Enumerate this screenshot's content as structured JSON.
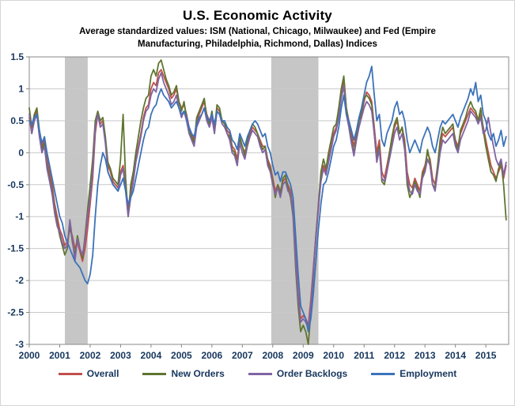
{
  "title": "U.S. Economic Activity",
  "subtitle": "Average standardized values: ISM (National, Chicago, Milwaukee) and Fed (Empire Manufacturing, Philadelphia, Richmond, Dallas) Indices",
  "chart_data": {
    "type": "line",
    "title": "U.S. Economic Activity",
    "subtitle": "Average standardized values: ISM (National, Chicago, Milwaukee) and Fed (Empire Manufacturing, Philadelphia, Richmond, Dallas) Indices",
    "xlim": [
      2000,
      2015.75
    ],
    "ylim": [
      -3,
      1.5
    ],
    "x_start": 2000.0,
    "x_step": 0.0833333,
    "x_tick_labels": [
      "2000",
      "2001",
      "2002",
      "2003",
      "2004",
      "2005",
      "2006",
      "2007",
      "2008",
      "2009",
      "2010",
      "2011",
      "2012",
      "2013",
      "2014",
      "2015"
    ],
    "x_ticks": [
      2000,
      2001,
      2002,
      2003,
      2004,
      2005,
      2006,
      2007,
      2008,
      2009,
      2010,
      2011,
      2012,
      2013,
      2014,
      2015
    ],
    "y_ticks": [
      1.5,
      1,
      0.5,
      0,
      -0.5,
      -1,
      -1.5,
      -2,
      -2.5,
      -3
    ],
    "y_tick_labels": [
      "1.5",
      "1",
      "0.5",
      "0",
      "-0.5",
      "-1",
      "-1.5",
      "-2",
      "-2.5",
      "-3"
    ],
    "grid": true,
    "legend_position": "bottom",
    "recession_bands": [
      [
        2001.17,
        2001.92
      ],
      [
        2007.95,
        2009.5
      ]
    ],
    "band_color": "#C6C6C6",
    "grid_color": "#C9C9C9",
    "axis_color": "#898989",
    "label_color": "#17375E",
    "series": [
      {
        "name": "Overall",
        "color": "#C0504D",
        "values": [
          0.55,
          0.3,
          0.55,
          0.65,
          0.3,
          0.1,
          0.2,
          -0.1,
          -0.3,
          -0.5,
          -0.8,
          -1.0,
          -1.2,
          -1.3,
          -1.45,
          -1.4,
          -1.2,
          -1.3,
          -1.5,
          -1.4,
          -1.55,
          -1.7,
          -1.5,
          -1.2,
          -0.8,
          -0.4,
          0.3,
          0.6,
          0.45,
          0.5,
          0.2,
          -0.2,
          -0.3,
          -0.45,
          -0.5,
          -0.55,
          -0.3,
          -0.2,
          -0.5,
          -0.9,
          -0.6,
          -0.4,
          -0.1,
          0.1,
          0.3,
          0.55,
          0.7,
          0.75,
          1.0,
          1.1,
          1.05,
          1.25,
          1.3,
          1.2,
          1.1,
          1.0,
          0.85,
          0.9,
          1.0,
          0.8,
          0.7,
          0.75,
          0.6,
          0.4,
          0.3,
          0.2,
          0.5,
          0.6,
          0.7,
          0.8,
          0.6,
          0.5,
          0.6,
          0.4,
          0.7,
          0.65,
          0.5,
          0.45,
          0.35,
          0.3,
          0.1,
          0.05,
          -0.1,
          0.2,
          0.1,
          0.0,
          0.15,
          0.3,
          0.4,
          0.35,
          0.3,
          0.2,
          0.1,
          0.1,
          -0.1,
          -0.2,
          -0.4,
          -0.6,
          -0.5,
          -0.6,
          -0.45,
          -0.4,
          -0.5,
          -0.6,
          -0.9,
          -1.6,
          -2.2,
          -2.6,
          -2.55,
          -2.6,
          -2.7,
          -2.3,
          -1.8,
          -1.3,
          -0.9,
          -0.4,
          -0.2,
          -0.3,
          -0.1,
          0.1,
          0.3,
          0.4,
          0.6,
          0.9,
          1.15,
          0.7,
          0.5,
          0.3,
          0.1,
          0.3,
          0.5,
          0.6,
          0.8,
          0.95,
          0.9,
          0.8,
          0.4,
          0.0,
          0.2,
          -0.3,
          -0.4,
          -0.2,
          0.0,
          0.2,
          0.4,
          0.5,
          0.3,
          0.4,
          0.2,
          -0.3,
          -0.5,
          -0.55,
          -0.4,
          -0.5,
          -0.6,
          -0.3,
          -0.2,
          0.0,
          -0.1,
          -0.4,
          -0.5,
          -0.2,
          0.1,
          0.3,
          0.25,
          0.3,
          0.35,
          0.4,
          0.2,
          0.1,
          0.3,
          0.4,
          0.5,
          0.6,
          0.7,
          0.65,
          0.6,
          0.5,
          0.6,
          0.4,
          0.2,
          0.0,
          -0.2,
          -0.3,
          -0.4,
          -0.3,
          -0.2,
          -0.4,
          -0.2
        ]
      },
      {
        "name": "New Orders",
        "color": "#5F7530",
        "values": [
          0.7,
          0.4,
          0.6,
          0.7,
          0.35,
          0.05,
          0.15,
          -0.2,
          -0.4,
          -0.6,
          -0.9,
          -1.1,
          -1.3,
          -1.45,
          -1.6,
          -1.5,
          -1.1,
          -1.4,
          -1.6,
          -1.3,
          -1.5,
          -1.65,
          -1.3,
          -0.9,
          -0.5,
          -0.1,
          0.5,
          0.65,
          0.5,
          0.55,
          0.25,
          -0.15,
          -0.25,
          -0.4,
          -0.45,
          -0.5,
          -0.1,
          0.6,
          -0.4,
          -1.0,
          -0.5,
          -0.3,
          0.0,
          0.25,
          0.5,
          0.7,
          0.85,
          0.9,
          1.2,
          1.3,
          1.2,
          1.4,
          1.45,
          1.3,
          1.15,
          1.05,
          0.9,
          0.95,
          1.05,
          0.8,
          0.65,
          0.8,
          0.55,
          0.35,
          0.25,
          0.15,
          0.55,
          0.65,
          0.75,
          0.85,
          0.55,
          0.45,
          0.65,
          0.35,
          0.75,
          0.7,
          0.5,
          0.45,
          0.3,
          0.25,
          0.05,
          0.0,
          -0.2,
          0.25,
          0.1,
          -0.05,
          0.2,
          0.35,
          0.45,
          0.4,
          0.3,
          0.15,
          0.05,
          0.1,
          -0.15,
          -0.25,
          -0.45,
          -0.7,
          -0.5,
          -0.65,
          -0.4,
          -0.35,
          -0.55,
          -0.7,
          -1.0,
          -1.8,
          -2.4,
          -2.8,
          -2.7,
          -2.8,
          -3.0,
          -2.5,
          -1.9,
          -1.3,
          -0.8,
          -0.3,
          -0.1,
          -0.25,
          0.0,
          0.2,
          0.4,
          0.45,
          0.7,
          1.0,
          1.2,
          0.7,
          0.45,
          0.2,
          0.0,
          0.25,
          0.5,
          0.65,
          0.85,
          0.9,
          0.85,
          0.75,
          0.3,
          -0.1,
          0.1,
          -0.45,
          -0.5,
          -0.3,
          0.0,
          0.25,
          0.45,
          0.55,
          0.3,
          0.4,
          0.1,
          -0.5,
          -0.7,
          -0.6,
          -0.45,
          -0.55,
          -0.7,
          -0.35,
          -0.25,
          0.05,
          -0.15,
          -0.5,
          -0.55,
          -0.2,
          0.2,
          0.4,
          0.3,
          0.35,
          0.4,
          0.45,
          0.15,
          0.05,
          0.35,
          0.45,
          0.55,
          0.7,
          0.8,
          0.7,
          0.65,
          0.5,
          0.7,
          0.35,
          0.1,
          -0.1,
          -0.3,
          -0.35,
          -0.45,
          -0.25,
          -0.15,
          -0.5,
          -1.05
        ]
      },
      {
        "name": "Order Backlogs",
        "color": "#8064A2",
        "values": [
          0.6,
          0.3,
          0.5,
          0.6,
          0.25,
          0.0,
          0.1,
          -0.25,
          -0.45,
          -0.65,
          -0.95,
          -1.15,
          -1.25,
          -1.4,
          -1.5,
          -1.45,
          -1.05,
          -1.35,
          -1.7,
          -1.35,
          -1.5,
          -1.6,
          -1.35,
          -1.0,
          -0.7,
          -0.3,
          0.4,
          0.6,
          0.4,
          0.45,
          0.15,
          -0.3,
          -0.4,
          -0.5,
          -0.55,
          -0.6,
          -0.35,
          -0.25,
          -0.6,
          -1.0,
          -0.7,
          -0.45,
          -0.15,
          0.05,
          0.25,
          0.5,
          0.65,
          0.7,
          0.9,
          1.0,
          0.95,
          1.15,
          1.25,
          1.1,
          1.0,
          0.9,
          0.75,
          0.8,
          0.9,
          0.7,
          0.55,
          0.65,
          0.5,
          0.3,
          0.2,
          0.1,
          0.4,
          0.5,
          0.6,
          0.7,
          0.5,
          0.4,
          0.55,
          0.3,
          0.65,
          0.6,
          0.45,
          0.4,
          0.3,
          0.2,
          0.0,
          -0.05,
          -0.2,
          0.15,
          0.0,
          -0.1,
          0.1,
          0.25,
          0.35,
          0.3,
          0.25,
          0.1,
          0.0,
          0.05,
          -0.2,
          -0.3,
          -0.5,
          -0.65,
          -0.55,
          -0.7,
          -0.5,
          -0.45,
          -0.6,
          -0.65,
          -0.95,
          -1.7,
          -2.3,
          -2.65,
          -2.6,
          -2.65,
          -2.75,
          -2.4,
          -1.85,
          -1.35,
          -0.85,
          -0.45,
          -0.25,
          -0.35,
          -0.15,
          0.05,
          0.25,
          0.35,
          0.55,
          0.85,
          1.05,
          0.6,
          0.4,
          0.15,
          -0.05,
          0.2,
          0.4,
          0.55,
          0.7,
          0.8,
          0.75,
          0.65,
          0.3,
          -0.15,
          0.05,
          -0.4,
          -0.45,
          -0.3,
          -0.1,
          0.1,
          0.3,
          0.4,
          0.2,
          0.3,
          0.05,
          -0.4,
          -0.6,
          -0.65,
          -0.5,
          -0.6,
          -0.65,
          -0.4,
          -0.3,
          -0.1,
          -0.2,
          -0.5,
          -0.6,
          -0.3,
          0.0,
          0.2,
          0.15,
          0.2,
          0.25,
          0.3,
          0.1,
          0.0,
          0.2,
          0.3,
          0.4,
          0.5,
          0.65,
          0.6,
          0.55,
          0.45,
          0.55,
          0.3,
          0.35,
          0.55,
          0.3,
          0.1,
          -0.1,
          -0.2,
          -0.1,
          -0.35,
          -0.15
        ]
      },
      {
        "name": "Employment",
        "color": "#3B73B9",
        "values": [
          0.5,
          0.45,
          0.55,
          0.6,
          0.35,
          0.15,
          0.25,
          0.0,
          -0.2,
          -0.4,
          -0.6,
          -0.8,
          -1.0,
          -1.1,
          -1.3,
          -1.4,
          -1.5,
          -1.6,
          -1.7,
          -1.75,
          -1.8,
          -1.9,
          -2.0,
          -2.05,
          -1.9,
          -1.6,
          -1.0,
          -0.5,
          -0.2,
          0.0,
          -0.1,
          -0.3,
          -0.4,
          -0.5,
          -0.55,
          -0.6,
          -0.5,
          -0.4,
          -0.6,
          -0.8,
          -0.7,
          -0.6,
          -0.4,
          -0.2,
          0.0,
          0.2,
          0.35,
          0.4,
          0.6,
          0.7,
          0.75,
          0.9,
          1.0,
          0.9,
          0.85,
          0.8,
          0.7,
          0.75,
          0.8,
          0.7,
          0.6,
          0.65,
          0.55,
          0.4,
          0.3,
          0.25,
          0.45,
          0.55,
          0.6,
          0.7,
          0.55,
          0.5,
          0.6,
          0.45,
          0.65,
          0.6,
          0.5,
          0.5,
          0.4,
          0.35,
          0.2,
          0.15,
          0.05,
          0.3,
          0.2,
          0.1,
          0.25,
          0.35,
          0.45,
          0.5,
          0.45,
          0.35,
          0.25,
          0.3,
          0.1,
          0.0,
          -0.2,
          -0.35,
          -0.3,
          -0.45,
          -0.3,
          -0.3,
          -0.4,
          -0.5,
          -0.7,
          -1.3,
          -1.9,
          -2.4,
          -2.5,
          -2.6,
          -2.8,
          -2.6,
          -2.2,
          -1.7,
          -1.2,
          -0.8,
          -0.5,
          -0.45,
          -0.3,
          -0.1,
          0.1,
          0.2,
          0.4,
          0.7,
          0.9,
          0.6,
          0.5,
          0.35,
          0.2,
          0.35,
          0.55,
          0.7,
          0.9,
          1.1,
          1.2,
          1.35,
          0.9,
          0.5,
          0.6,
          0.2,
          0.1,
          0.3,
          0.4,
          0.5,
          0.7,
          0.8,
          0.6,
          0.65,
          0.5,
          0.2,
          0.0,
          0.1,
          0.2,
          0.1,
          0.0,
          0.2,
          0.3,
          0.4,
          0.3,
          0.1,
          0.0,
          0.2,
          0.4,
          0.5,
          0.45,
          0.5,
          0.55,
          0.6,
          0.5,
          0.4,
          0.55,
          0.65,
          0.75,
          0.85,
          1.0,
          0.9,
          1.1,
          0.8,
          0.9,
          0.6,
          0.5,
          0.3,
          0.2,
          0.3,
          0.1,
          0.2,
          0.35,
          0.1,
          0.25
        ]
      }
    ]
  }
}
